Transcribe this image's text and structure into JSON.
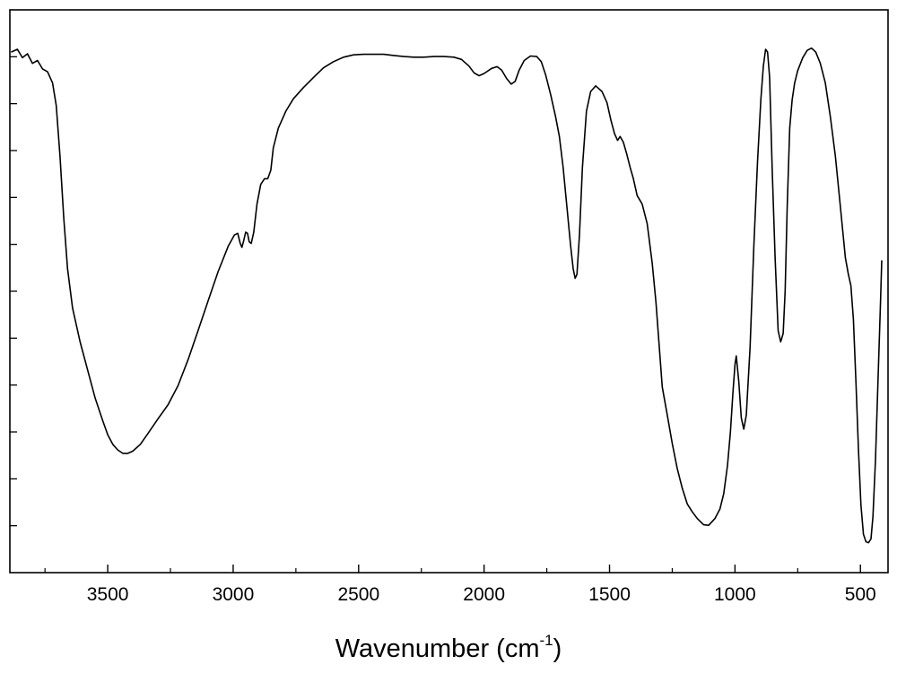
{
  "chart_data": {
    "type": "line",
    "title": "",
    "xlabel_main": "Wavenumber (cm",
    "xlabel_sup": "-1",
    "xlabel_close": ")",
    "ylabel": "",
    "x_reversed": true,
    "xlim": [
      3890,
      390
    ],
    "ylim": [
      0,
      1
    ],
    "y_tick_labels_shown": false,
    "grid": false,
    "x_ticks": [
      3500,
      3000,
      2500,
      2000,
      1500,
      1000,
      500
    ],
    "x_tick_labels": [
      "3500",
      "3000",
      "2500",
      "2000",
      "1500",
      "1000",
      "500"
    ],
    "series": [
      {
        "color": "#000000",
        "points": [
          [
            3885,
            0.925
          ],
          [
            3860,
            0.93
          ],
          [
            3840,
            0.915
          ],
          [
            3820,
            0.922
          ],
          [
            3800,
            0.905
          ],
          [
            3780,
            0.91
          ],
          [
            3760,
            0.895
          ],
          [
            3740,
            0.89
          ],
          [
            3720,
            0.87
          ],
          [
            3705,
            0.83
          ],
          [
            3690,
            0.74
          ],
          [
            3675,
            0.63
          ],
          [
            3660,
            0.54
          ],
          [
            3640,
            0.47
          ],
          [
            3610,
            0.41
          ],
          [
            3580,
            0.36
          ],
          [
            3550,
            0.31
          ],
          [
            3520,
            0.27
          ],
          [
            3500,
            0.245
          ],
          [
            3480,
            0.228
          ],
          [
            3460,
            0.218
          ],
          [
            3440,
            0.212
          ],
          [
            3420,
            0.212
          ],
          [
            3400,
            0.216
          ],
          [
            3370,
            0.228
          ],
          [
            3340,
            0.247
          ],
          [
            3300,
            0.273
          ],
          [
            3260,
            0.298
          ],
          [
            3220,
            0.332
          ],
          [
            3180,
            0.378
          ],
          [
            3140,
            0.43
          ],
          [
            3100,
            0.483
          ],
          [
            3060,
            0.535
          ],
          [
            3020,
            0.58
          ],
          [
            2995,
            0.6
          ],
          [
            2982,
            0.603
          ],
          [
            2972,
            0.585
          ],
          [
            2965,
            0.578
          ],
          [
            2958,
            0.59
          ],
          [
            2950,
            0.605
          ],
          [
            2943,
            0.603
          ],
          [
            2936,
            0.588
          ],
          [
            2928,
            0.585
          ],
          [
            2918,
            0.605
          ],
          [
            2905,
            0.655
          ],
          [
            2890,
            0.69
          ],
          [
            2875,
            0.7
          ],
          [
            2862,
            0.7
          ],
          [
            2850,
            0.715
          ],
          [
            2840,
            0.755
          ],
          [
            2820,
            0.79
          ],
          [
            2790,
            0.82
          ],
          [
            2760,
            0.842
          ],
          [
            2720,
            0.862
          ],
          [
            2680,
            0.88
          ],
          [
            2640,
            0.897
          ],
          [
            2600,
            0.908
          ],
          [
            2560,
            0.916
          ],
          [
            2520,
            0.92
          ],
          [
            2480,
            0.921
          ],
          [
            2440,
            0.921
          ],
          [
            2400,
            0.921
          ],
          [
            2360,
            0.919
          ],
          [
            2320,
            0.917
          ],
          [
            2280,
            0.916
          ],
          [
            2240,
            0.916
          ],
          [
            2200,
            0.917
          ],
          [
            2160,
            0.917
          ],
          [
            2120,
            0.916
          ],
          [
            2090,
            0.912
          ],
          [
            2060,
            0.9
          ],
          [
            2040,
            0.888
          ],
          [
            2020,
            0.883
          ],
          [
            2000,
            0.887
          ],
          [
            1970,
            0.896
          ],
          [
            1948,
            0.899
          ],
          [
            1930,
            0.893
          ],
          [
            1910,
            0.878
          ],
          [
            1892,
            0.868
          ],
          [
            1876,
            0.873
          ],
          [
            1860,
            0.893
          ],
          [
            1840,
            0.91
          ],
          [
            1815,
            0.918
          ],
          [
            1790,
            0.917
          ],
          [
            1772,
            0.908
          ],
          [
            1755,
            0.885
          ],
          [
            1735,
            0.85
          ],
          [
            1715,
            0.81
          ],
          [
            1700,
            0.775
          ],
          [
            1685,
            0.72
          ],
          [
            1670,
            0.65
          ],
          [
            1655,
            0.58
          ],
          [
            1645,
            0.54
          ],
          [
            1637,
            0.523
          ],
          [
            1630,
            0.53
          ],
          [
            1620,
            0.6
          ],
          [
            1608,
            0.72
          ],
          [
            1592,
            0.82
          ],
          [
            1575,
            0.855
          ],
          [
            1555,
            0.865
          ],
          [
            1530,
            0.855
          ],
          [
            1510,
            0.835
          ],
          [
            1495,
            0.805
          ],
          [
            1480,
            0.78
          ],
          [
            1468,
            0.768
          ],
          [
            1458,
            0.775
          ],
          [
            1445,
            0.765
          ],
          [
            1432,
            0.745
          ],
          [
            1418,
            0.72
          ],
          [
            1405,
            0.7
          ],
          [
            1390,
            0.67
          ],
          [
            1370,
            0.655
          ],
          [
            1350,
            0.62
          ],
          [
            1330,
            0.55
          ],
          [
            1315,
            0.48
          ],
          [
            1300,
            0.39
          ],
          [
            1290,
            0.33
          ],
          [
            1270,
            0.28
          ],
          [
            1250,
            0.23
          ],
          [
            1230,
            0.185
          ],
          [
            1210,
            0.15
          ],
          [
            1190,
            0.122
          ],
          [
            1170,
            0.108
          ],
          [
            1150,
            0.096
          ],
          [
            1125,
            0.085
          ],
          [
            1105,
            0.084
          ],
          [
            1080,
            0.096
          ],
          [
            1060,
            0.113
          ],
          [
            1045,
            0.14
          ],
          [
            1030,
            0.19
          ],
          [
            1018,
            0.25
          ],
          [
            1008,
            0.32
          ],
          [
            1000,
            0.37
          ],
          [
            995,
            0.385
          ],
          [
            985,
            0.34
          ],
          [
            975,
            0.275
          ],
          [
            965,
            0.255
          ],
          [
            955,
            0.28
          ],
          [
            940,
            0.4
          ],
          [
            925,
            0.58
          ],
          [
            910,
            0.73
          ],
          [
            897,
            0.84
          ],
          [
            887,
            0.9
          ],
          [
            878,
            0.93
          ],
          [
            870,
            0.925
          ],
          [
            862,
            0.88
          ],
          [
            852,
            0.72
          ],
          [
            840,
            0.56
          ],
          [
            828,
            0.43
          ],
          [
            818,
            0.41
          ],
          [
            808,
            0.425
          ],
          [
            800,
            0.5
          ],
          [
            792,
            0.65
          ],
          [
            782,
            0.79
          ],
          [
            772,
            0.84
          ],
          [
            762,
            0.87
          ],
          [
            750,
            0.892
          ],
          [
            730,
            0.915
          ],
          [
            712,
            0.928
          ],
          [
            695,
            0.932
          ],
          [
            678,
            0.925
          ],
          [
            660,
            0.905
          ],
          [
            640,
            0.87
          ],
          [
            620,
            0.81
          ],
          [
            600,
            0.74
          ],
          [
            580,
            0.65
          ],
          [
            560,
            0.56
          ],
          [
            548,
            0.53
          ],
          [
            538,
            0.51
          ],
          [
            528,
            0.45
          ],
          [
            518,
            0.34
          ],
          [
            508,
            0.22
          ],
          [
            498,
            0.12
          ],
          [
            488,
            0.068
          ],
          [
            478,
            0.055
          ],
          [
            468,
            0.053
          ],
          [
            458,
            0.06
          ],
          [
            450,
            0.1
          ],
          [
            440,
            0.2
          ],
          [
            430,
            0.34
          ],
          [
            420,
            0.48
          ],
          [
            415,
            0.555
          ]
        ]
      }
    ]
  }
}
